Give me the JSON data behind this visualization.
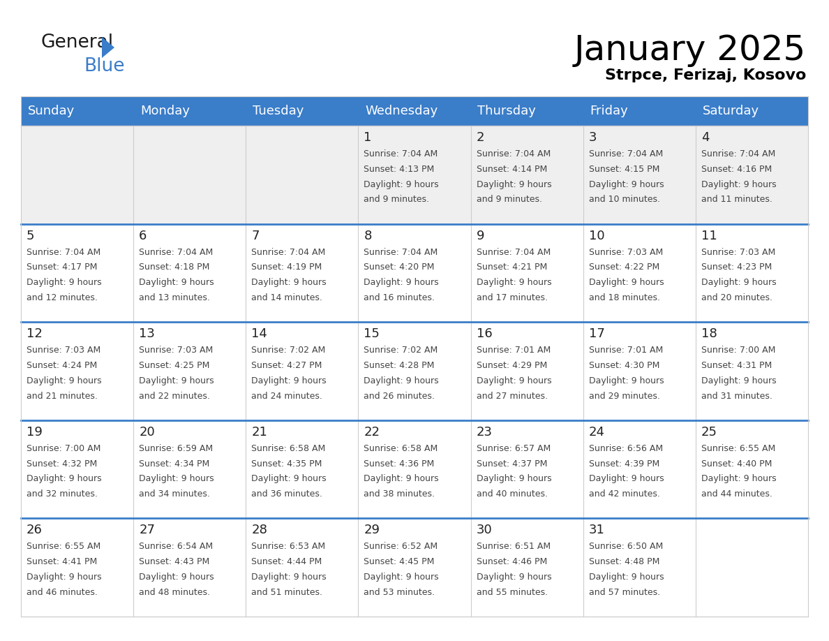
{
  "title": "January 2025",
  "subtitle": "Strpce, Ferizaj, Kosovo",
  "header_color": "#3A7DC9",
  "header_text_color": "#FFFFFF",
  "cell_bg": "#FFFFFF",
  "cell_bg_first": "#EFEFEF",
  "row_line_color": "#3A7DC9",
  "col_line_color": "#CCCCCC",
  "day_names": [
    "Sunday",
    "Monday",
    "Tuesday",
    "Wednesday",
    "Thursday",
    "Friday",
    "Saturday"
  ],
  "days": [
    {
      "day": 1,
      "col": 3,
      "row": 0,
      "sunrise": "7:04 AM",
      "sunset": "4:13 PM",
      "daylight": "9 hours and 9 minutes."
    },
    {
      "day": 2,
      "col": 4,
      "row": 0,
      "sunrise": "7:04 AM",
      "sunset": "4:14 PM",
      "daylight": "9 hours and 9 minutes."
    },
    {
      "day": 3,
      "col": 5,
      "row": 0,
      "sunrise": "7:04 AM",
      "sunset": "4:15 PM",
      "daylight": "9 hours and 10 minutes."
    },
    {
      "day": 4,
      "col": 6,
      "row": 0,
      "sunrise": "7:04 AM",
      "sunset": "4:16 PM",
      "daylight": "9 hours and 11 minutes."
    },
    {
      "day": 5,
      "col": 0,
      "row": 1,
      "sunrise": "7:04 AM",
      "sunset": "4:17 PM",
      "daylight": "9 hours and 12 minutes."
    },
    {
      "day": 6,
      "col": 1,
      "row": 1,
      "sunrise": "7:04 AM",
      "sunset": "4:18 PM",
      "daylight": "9 hours and 13 minutes."
    },
    {
      "day": 7,
      "col": 2,
      "row": 1,
      "sunrise": "7:04 AM",
      "sunset": "4:19 PM",
      "daylight": "9 hours and 14 minutes."
    },
    {
      "day": 8,
      "col": 3,
      "row": 1,
      "sunrise": "7:04 AM",
      "sunset": "4:20 PM",
      "daylight": "9 hours and 16 minutes."
    },
    {
      "day": 9,
      "col": 4,
      "row": 1,
      "sunrise": "7:04 AM",
      "sunset": "4:21 PM",
      "daylight": "9 hours and 17 minutes."
    },
    {
      "day": 10,
      "col": 5,
      "row": 1,
      "sunrise": "7:03 AM",
      "sunset": "4:22 PM",
      "daylight": "9 hours and 18 minutes."
    },
    {
      "day": 11,
      "col": 6,
      "row": 1,
      "sunrise": "7:03 AM",
      "sunset": "4:23 PM",
      "daylight": "9 hours and 20 minutes."
    },
    {
      "day": 12,
      "col": 0,
      "row": 2,
      "sunrise": "7:03 AM",
      "sunset": "4:24 PM",
      "daylight": "9 hours and 21 minutes."
    },
    {
      "day": 13,
      "col": 1,
      "row": 2,
      "sunrise": "7:03 AM",
      "sunset": "4:25 PM",
      "daylight": "9 hours and 22 minutes."
    },
    {
      "day": 14,
      "col": 2,
      "row": 2,
      "sunrise": "7:02 AM",
      "sunset": "4:27 PM",
      "daylight": "9 hours and 24 minutes."
    },
    {
      "day": 15,
      "col": 3,
      "row": 2,
      "sunrise": "7:02 AM",
      "sunset": "4:28 PM",
      "daylight": "9 hours and 26 minutes."
    },
    {
      "day": 16,
      "col": 4,
      "row": 2,
      "sunrise": "7:01 AM",
      "sunset": "4:29 PM",
      "daylight": "9 hours and 27 minutes."
    },
    {
      "day": 17,
      "col": 5,
      "row": 2,
      "sunrise": "7:01 AM",
      "sunset": "4:30 PM",
      "daylight": "9 hours and 29 minutes."
    },
    {
      "day": 18,
      "col": 6,
      "row": 2,
      "sunrise": "7:00 AM",
      "sunset": "4:31 PM",
      "daylight": "9 hours and 31 minutes."
    },
    {
      "day": 19,
      "col": 0,
      "row": 3,
      "sunrise": "7:00 AM",
      "sunset": "4:32 PM",
      "daylight": "9 hours and 32 minutes."
    },
    {
      "day": 20,
      "col": 1,
      "row": 3,
      "sunrise": "6:59 AM",
      "sunset": "4:34 PM",
      "daylight": "9 hours and 34 minutes."
    },
    {
      "day": 21,
      "col": 2,
      "row": 3,
      "sunrise": "6:58 AM",
      "sunset": "4:35 PM",
      "daylight": "9 hours and 36 minutes."
    },
    {
      "day": 22,
      "col": 3,
      "row": 3,
      "sunrise": "6:58 AM",
      "sunset": "4:36 PM",
      "daylight": "9 hours and 38 minutes."
    },
    {
      "day": 23,
      "col": 4,
      "row": 3,
      "sunrise": "6:57 AM",
      "sunset": "4:37 PM",
      "daylight": "9 hours and 40 minutes."
    },
    {
      "day": 24,
      "col": 5,
      "row": 3,
      "sunrise": "6:56 AM",
      "sunset": "4:39 PM",
      "daylight": "9 hours and 42 minutes."
    },
    {
      "day": 25,
      "col": 6,
      "row": 3,
      "sunrise": "6:55 AM",
      "sunset": "4:40 PM",
      "daylight": "9 hours and 44 minutes."
    },
    {
      "day": 26,
      "col": 0,
      "row": 4,
      "sunrise": "6:55 AM",
      "sunset": "4:41 PM",
      "daylight": "9 hours and 46 minutes."
    },
    {
      "day": 27,
      "col": 1,
      "row": 4,
      "sunrise": "6:54 AM",
      "sunset": "4:43 PM",
      "daylight": "9 hours and 48 minutes."
    },
    {
      "day": 28,
      "col": 2,
      "row": 4,
      "sunrise": "6:53 AM",
      "sunset": "4:44 PM",
      "daylight": "9 hours and 51 minutes."
    },
    {
      "day": 29,
      "col": 3,
      "row": 4,
      "sunrise": "6:52 AM",
      "sunset": "4:45 PM",
      "daylight": "9 hours and 53 minutes."
    },
    {
      "day": 30,
      "col": 4,
      "row": 4,
      "sunrise": "6:51 AM",
      "sunset": "4:46 PM",
      "daylight": "9 hours and 55 minutes."
    },
    {
      "day": 31,
      "col": 5,
      "row": 4,
      "sunrise": "6:50 AM",
      "sunset": "4:48 PM",
      "daylight": "9 hours and 57 minutes."
    }
  ]
}
